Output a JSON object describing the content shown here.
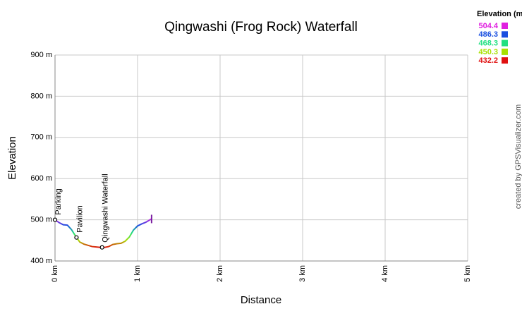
{
  "chart_data": {
    "type": "line",
    "title": "Qingwashi (Frog Rock) Waterfall",
    "x_label": "Distance",
    "y_label": "Elevation",
    "x": [
      0,
      0.05,
      0.1,
      0.15,
      0.2,
      0.25,
      0.3,
      0.35,
      0.4,
      0.45,
      0.5,
      0.55,
      0.6,
      0.65,
      0.7,
      0.75,
      0.8,
      0.85,
      0.9,
      0.95,
      1.0,
      1.05,
      1.1,
      1.15,
      1.17
    ],
    "values": [
      500,
      493,
      488,
      487,
      476,
      460,
      446,
      441,
      438,
      435,
      434,
      433,
      433,
      435,
      440,
      442,
      443,
      448,
      458,
      475,
      485,
      490,
      494,
      500,
      502
    ],
    "xlim": [
      0,
      5
    ],
    "ylim": [
      400,
      900
    ],
    "xticks": [
      {
        "value": 0,
        "label": "0 km"
      },
      {
        "value": 1,
        "label": "1 km"
      },
      {
        "value": 2,
        "label": "2 km"
      },
      {
        "value": 3,
        "label": "3 km"
      },
      {
        "value": 4,
        "label": "4 km"
      },
      {
        "value": 5,
        "label": "5 km"
      }
    ],
    "yticks": [
      {
        "value": 400,
        "label": "400 m"
      },
      {
        "value": 500,
        "label": "500 m"
      },
      {
        "value": 600,
        "label": "600 m"
      },
      {
        "value": 700,
        "label": "700 m"
      },
      {
        "value": 800,
        "label": "800 m"
      },
      {
        "value": 900,
        "label": "900 m"
      }
    ],
    "grid": true,
    "waypoints": [
      {
        "name": "Parking",
        "x": 0,
        "y": 500
      },
      {
        "name": "Pavilion",
        "x": 0.26,
        "y": 457
      },
      {
        "name": "Qingwashi Waterfall",
        "x": 0.57,
        "y": 433
      }
    ],
    "legend": {
      "title": "Elevation (m)",
      "entries": [
        {
          "value": 504.4,
          "color": "#e020e0"
        },
        {
          "value": 486.3,
          "color": "#1a4fe0"
        },
        {
          "value": 468.3,
          "color": "#20e080"
        },
        {
          "value": 450.3,
          "color": "#a8e000"
        },
        {
          "value": 432.2,
          "color": "#e01010"
        }
      ]
    },
    "credit": "created by GPSVisualizer.com"
  }
}
